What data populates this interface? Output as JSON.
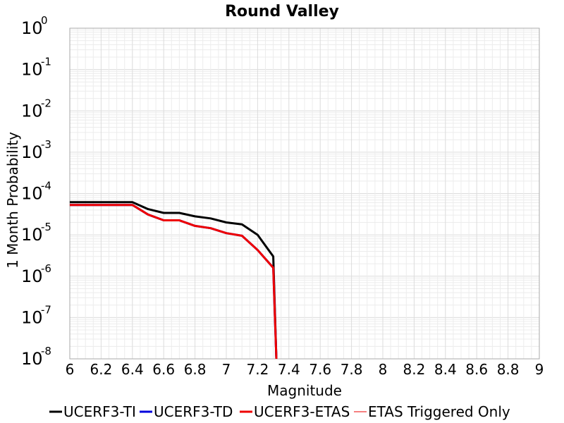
{
  "chart_data": {
    "type": "line",
    "title": "Round Valley",
    "xlabel": "Magnitude",
    "ylabel": "1 Month Probability",
    "xlim": [
      6,
      9
    ],
    "ylim": [
      1e-08,
      1
    ],
    "yscale": "log",
    "grid": true,
    "legend_position": "bottom",
    "x_ticks": [
      "6",
      "6.2",
      "6.4",
      "6.6",
      "6.8",
      "7",
      "7.2",
      "7.4",
      "7.6",
      "7.8",
      "8",
      "8.2",
      "8.4",
      "8.6",
      "8.8",
      "9"
    ],
    "y_ticks": [
      {
        "base": "10",
        "exp": "0"
      },
      {
        "base": "10",
        "exp": "-1"
      },
      {
        "base": "10",
        "exp": "-2"
      },
      {
        "base": "10",
        "exp": "-3"
      },
      {
        "base": "10",
        "exp": "-4"
      },
      {
        "base": "10",
        "exp": "-5"
      },
      {
        "base": "10",
        "exp": "-6"
      },
      {
        "base": "10",
        "exp": "-7"
      },
      {
        "base": "10",
        "exp": "-8"
      }
    ],
    "series": [
      {
        "name": "UCERF3-TI",
        "color": "#000000",
        "width": 3,
        "x": [
          6.0,
          6.1,
          6.2,
          6.3,
          6.4,
          6.5,
          6.6,
          6.7,
          6.8,
          6.9,
          7.0,
          7.1,
          7.2,
          7.3,
          7.32
        ],
        "y": [
          6.2e-05,
          6.2e-05,
          6.2e-05,
          6.2e-05,
          6.2e-05,
          4.2e-05,
          3.4e-05,
          3.4e-05,
          2.8e-05,
          2.5e-05,
          2e-05,
          1.8e-05,
          1e-05,
          3e-06,
          1e-08
        ]
      },
      {
        "name": "UCERF3-TD",
        "color": "#0000dd",
        "width": 3,
        "x": [
          6.0,
          6.1,
          6.2,
          6.3,
          6.4,
          6.5,
          6.6,
          6.7,
          6.8,
          6.9,
          7.0,
          7.1,
          7.2,
          7.3,
          7.32
        ],
        "y": [
          5.3e-05,
          5.3e-05,
          5.3e-05,
          5.3e-05,
          5.3e-05,
          3.1e-05,
          2.25e-05,
          2.25e-05,
          1.65e-05,
          1.45e-05,
          1.1e-05,
          9.5e-06,
          4.3e-06,
          1.6e-06,
          1e-08
        ]
      },
      {
        "name": "UCERF3-ETAS",
        "color": "#ee0000",
        "width": 3,
        "x": [
          6.0,
          6.1,
          6.2,
          6.3,
          6.4,
          6.5,
          6.6,
          6.7,
          6.8,
          6.9,
          7.0,
          7.1,
          7.2,
          7.3,
          7.32
        ],
        "y": [
          5.3e-05,
          5.3e-05,
          5.3e-05,
          5.3e-05,
          5.3e-05,
          3.1e-05,
          2.25e-05,
          2.25e-05,
          1.65e-05,
          1.45e-05,
          1.1e-05,
          9.5e-06,
          4.3e-06,
          1.6e-06,
          1e-08
        ]
      },
      {
        "name": "ETAS Triggered Only",
        "color": "#ee0000",
        "width": 1,
        "x": [],
        "y": []
      }
    ]
  }
}
